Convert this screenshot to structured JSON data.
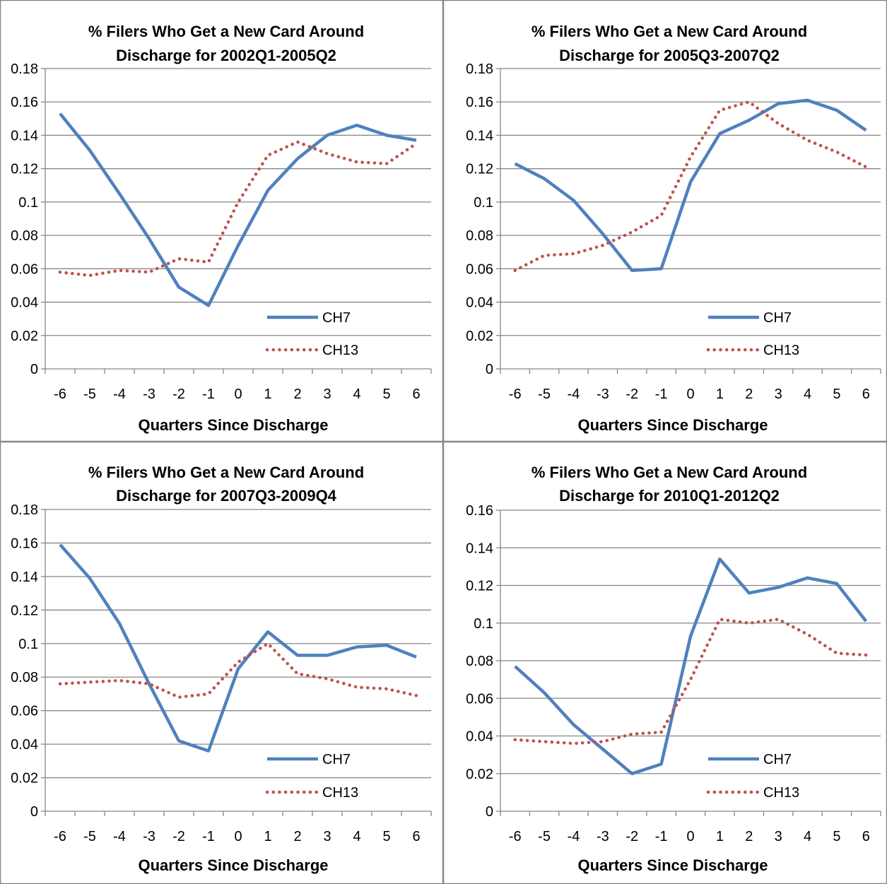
{
  "colors": {
    "ch7": "#4f81bd",
    "ch13": "#c0504d",
    "grid": "#878787",
    "border": "#868686"
  },
  "chart_data": [
    {
      "type": "line",
      "title": [
        "% Filers Who Get a New Card Around",
        "Discharge for 2002Q1-2005Q2"
      ],
      "xlabel": "Quarters Since Discharge",
      "categories": [
        "-6",
        "-5",
        "-4",
        "-3",
        "-2",
        "-1",
        "0",
        "1",
        "2",
        "3",
        "4",
        "5",
        "6"
      ],
      "ylim": [
        0,
        0.18
      ],
      "yticks": [
        "0",
        "0.02",
        "0.04",
        "0.06",
        "0.08",
        "0.1",
        "0.12",
        "0.14",
        "0.16",
        "0.18"
      ],
      "grid": true,
      "legend": "bottom-right",
      "series": [
        {
          "name": "CH7",
          "style": "solid",
          "values": [
            0.153,
            0.131,
            0.105,
            0.078,
            0.049,
            0.038,
            0.074,
            0.107,
            0.126,
            0.14,
            0.146,
            0.14,
            0.137
          ]
        },
        {
          "name": "CH13",
          "style": "dotted",
          "values": [
            0.058,
            0.056,
            0.059,
            0.058,
            0.066,
            0.064,
            0.1,
            0.128,
            0.136,
            0.129,
            0.124,
            0.123,
            0.135
          ]
        }
      ]
    },
    {
      "type": "line",
      "title": [
        "% Filers Who Get a New Card Around",
        "Discharge for 2005Q3-2007Q2"
      ],
      "xlabel": "Quarters Since Discharge",
      "categories": [
        "-6",
        "-5",
        "-4",
        "-3",
        "-2",
        "-1",
        "0",
        "1",
        "2",
        "3",
        "4",
        "5",
        "6"
      ],
      "ylim": [
        0,
        0.18
      ],
      "yticks": [
        "0",
        "0.02",
        "0.04",
        "0.06",
        "0.08",
        "0.1",
        "0.12",
        "0.14",
        "0.16",
        "0.18"
      ],
      "grid": true,
      "legend": "bottom-right",
      "series": [
        {
          "name": "CH7",
          "style": "solid",
          "values": [
            0.123,
            0.114,
            0.101,
            0.081,
            0.059,
            0.06,
            0.112,
            0.141,
            0.149,
            0.159,
            0.161,
            0.155,
            0.143
          ]
        },
        {
          "name": "CH13",
          "style": "dotted",
          "values": [
            0.059,
            0.068,
            0.069,
            0.074,
            0.082,
            0.092,
            0.127,
            0.155,
            0.16,
            0.147,
            0.137,
            0.13,
            0.121
          ]
        }
      ]
    },
    {
      "type": "line",
      "title": [
        "% Filers Who Get a New Card Around",
        "Discharge for 2007Q3-2009Q4"
      ],
      "xlabel": "Quarters Since Discharge",
      "categories": [
        "-6",
        "-5",
        "-4",
        "-3",
        "-2",
        "-1",
        "0",
        "1",
        "2",
        "3",
        "4",
        "5",
        "6"
      ],
      "ylim": [
        0,
        0.18
      ],
      "yticks": [
        "0",
        "0.02",
        "0.04",
        "0.06",
        "0.08",
        "0.1",
        "0.12",
        "0.14",
        "0.16",
        "0.18"
      ],
      "grid": true,
      "legend": "bottom-right",
      "series": [
        {
          "name": "CH7",
          "style": "solid",
          "values": [
            0.159,
            0.139,
            0.112,
            0.076,
            0.042,
            0.036,
            0.085,
            0.107,
            0.093,
            0.093,
            0.098,
            0.099,
            0.092
          ]
        },
        {
          "name": "CH13",
          "style": "dotted",
          "values": [
            0.076,
            0.077,
            0.078,
            0.076,
            0.068,
            0.07,
            0.089,
            0.1,
            0.082,
            0.079,
            0.074,
            0.073,
            0.069
          ]
        }
      ]
    },
    {
      "type": "line",
      "title": [
        "% Filers Who Get a New Card Around",
        "Discharge for 2010Q1-2012Q2"
      ],
      "xlabel": "Quarters Since Discharge",
      "categories": [
        "-6",
        "-5",
        "-4",
        "-3",
        "-2",
        "-1",
        "0",
        "1",
        "2",
        "3",
        "4",
        "5",
        "6"
      ],
      "ylim": [
        0,
        0.16
      ],
      "yticks": [
        "0",
        "0.02",
        "0.04",
        "0.06",
        "0.08",
        "0.1",
        "0.12",
        "0.14",
        "0.16"
      ],
      "grid": true,
      "legend": "bottom-right",
      "series": [
        {
          "name": "CH7",
          "style": "solid",
          "values": [
            0.077,
            0.063,
            0.046,
            0.033,
            0.02,
            0.025,
            0.093,
            0.134,
            0.116,
            0.119,
            0.124,
            0.121,
            0.101
          ]
        },
        {
          "name": "CH13",
          "style": "dotted",
          "values": [
            0.038,
            0.037,
            0.036,
            0.037,
            0.041,
            0.042,
            0.07,
            0.102,
            0.1,
            0.102,
            0.094,
            0.084,
            0.083
          ]
        }
      ]
    }
  ]
}
